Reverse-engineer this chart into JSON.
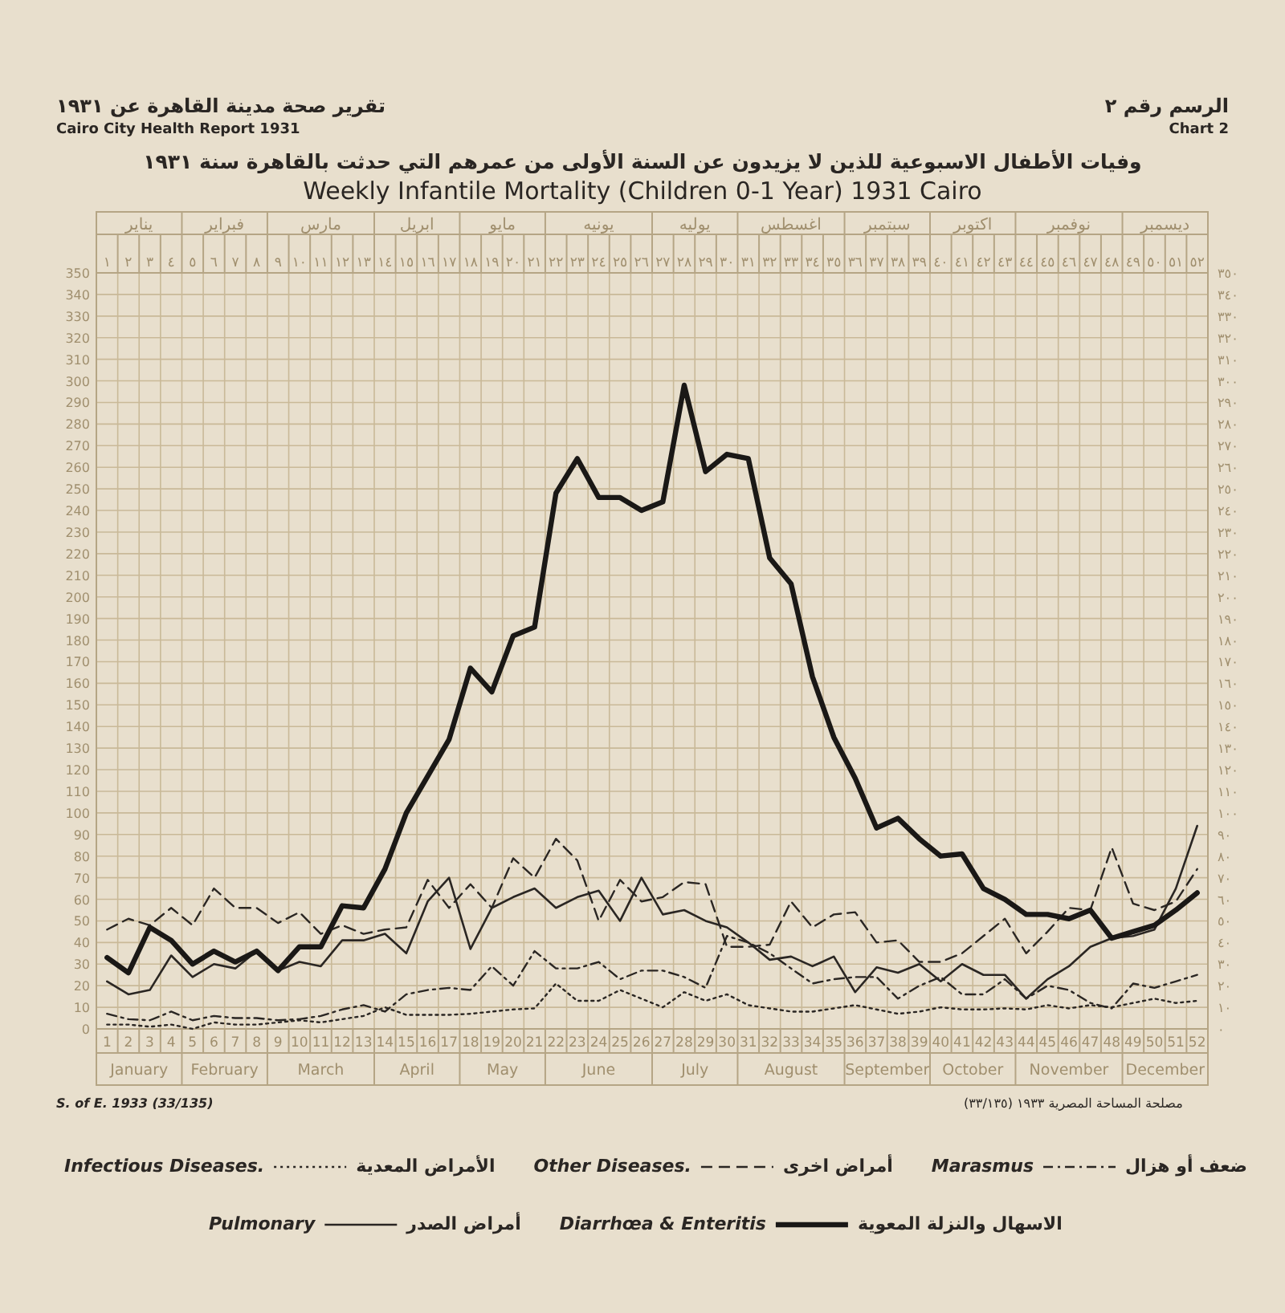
{
  "chart_data": {
    "type": "line",
    "title": "Weekly Infantile Mortality (Children 0-1 Year) 1931 Cairo",
    "subtitle": "وفيات الأطفال الاسبوعية للذين لا يزيدون عن السنة الأولى من عمرهم التي حدثت بالقاهرة سنة ١٩٣١",
    "x": [
      1,
      2,
      3,
      4,
      5,
      6,
      7,
      8,
      9,
      10,
      11,
      12,
      13,
      14,
      15,
      16,
      17,
      18,
      19,
      20,
      21,
      22,
      23,
      24,
      25,
      26,
      27,
      28,
      29,
      30,
      31,
      32,
      33,
      34,
      35,
      36,
      37,
      38,
      39,
      40,
      41,
      42,
      43,
      44,
      45,
      46,
      47,
      48,
      49,
      50,
      51,
      52
    ],
    "xlim": [
      0.5,
      52.5
    ],
    "xticks": [
      1,
      2,
      3,
      4,
      5,
      6,
      7,
      8,
      9,
      10,
      11,
      12,
      13,
      14,
      15,
      16,
      17,
      18,
      19,
      20,
      21,
      22,
      23,
      24,
      25,
      26,
      27,
      28,
      29,
      30,
      31,
      32,
      33,
      34,
      35,
      36,
      37,
      38,
      39,
      40,
      41,
      42,
      43,
      44,
      45,
      46,
      47,
      48,
      49,
      50,
      51,
      52
    ],
    "x2lim": [
      0.5,
      52.5
    ],
    "x2ticks": [
      {
        "value": 1,
        "label": "١"
      },
      {
        "value": 2,
        "label": "٢"
      },
      {
        "value": 3,
        "label": "٣"
      },
      {
        "value": 4,
        "label": "٤"
      },
      {
        "value": 5,
        "label": "٥"
      },
      {
        "value": 6,
        "label": "٦"
      },
      {
        "value": 7,
        "label": "٧"
      },
      {
        "value": 8,
        "label": "٨"
      },
      {
        "value": 9,
        "label": "٩"
      },
      {
        "value": 10,
        "label": "١٠"
      },
      {
        "value": 11,
        "label": "١١"
      },
      {
        "value": 12,
        "label": "١٢"
      },
      {
        "value": 13,
        "label": "١٣"
      },
      {
        "value": 14,
        "label": "١٤"
      },
      {
        "value": 15,
        "label": "١٥"
      },
      {
        "value": 16,
        "label": "١٦"
      },
      {
        "value": 17,
        "label": "١٧"
      },
      {
        "value": 18,
        "label": "١٨"
      },
      {
        "value": 19,
        "label": "١٩"
      },
      {
        "value": 20,
        "label": "٢٠"
      },
      {
        "value": 21,
        "label": "٢١"
      },
      {
        "value": 22,
        "label": "٢٢"
      },
      {
        "value": 23,
        "label": "٢٣"
      },
      {
        "value": 24,
        "label": "٢٤"
      },
      {
        "value": 25,
        "label": "٢٥"
      },
      {
        "value": 26,
        "label": "٢٦"
      },
      {
        "value": 27,
        "label": "٢٧"
      },
      {
        "value": 28,
        "label": "٢٨"
      },
      {
        "value": 29,
        "label": "٢٩"
      },
      {
        "value": 30,
        "label": "٣٠"
      },
      {
        "value": 31,
        "label": "٣١"
      },
      {
        "value": 32,
        "label": "٣٢"
      },
      {
        "value": 33,
        "label": "٣٣"
      },
      {
        "value": 34,
        "label": "٣٤"
      },
      {
        "value": 35,
        "label": "٣٥"
      },
      {
        "value": 36,
        "label": "٣٦"
      },
      {
        "value": 37,
        "label": "٣٧"
      },
      {
        "value": 38,
        "label": "٣٨"
      },
      {
        "value": 39,
        "label": "٣٩"
      },
      {
        "value": 40,
        "label": "٤٠"
      },
      {
        "value": 41,
        "label": "٤١"
      },
      {
        "value": 42,
        "label": "٤٢"
      },
      {
        "value": 43,
        "label": "٤٣"
      },
      {
        "value": 44,
        "label": "٤٤"
      },
      {
        "value": 45,
        "label": "٤٥"
      },
      {
        "value": 46,
        "label": "٤٦"
      },
      {
        "value": 47,
        "label": "٤٧"
      },
      {
        "value": 48,
        "label": "٤٨"
      },
      {
        "value": 49,
        "label": "٤٩"
      },
      {
        "value": 50,
        "label": "٥٠"
      },
      {
        "value": 51,
        "label": "٥١"
      },
      {
        "value": 52,
        "label": "٥٢"
      }
    ],
    "ylim": [
      0,
      350
    ],
    "yticks": [
      0,
      10,
      20,
      30,
      40,
      50,
      60,
      70,
      80,
      90,
      100,
      110,
      120,
      130,
      140,
      150,
      160,
      170,
      180,
      190,
      200,
      210,
      220,
      230,
      240,
      250,
      260,
      270,
      280,
      290,
      300,
      310,
      320,
      330,
      340,
      350
    ],
    "y2lim": [
      0,
      350
    ],
    "y2ticks": [
      {
        "value": 0,
        "label": "٠"
      },
      {
        "value": 10,
        "label": "١٠"
      },
      {
        "value": 20,
        "label": "٢٠"
      },
      {
        "value": 30,
        "label": "٣٠"
      },
      {
        "value": 40,
        "label": "٤٠"
      },
      {
        "value": 50,
        "label": "٥٠"
      },
      {
        "value": 60,
        "label": "٦٠"
      },
      {
        "value": 70,
        "label": "٧٠"
      },
      {
        "value": 80,
        "label": "٨٠"
      },
      {
        "value": 90,
        "label": "٩٠"
      },
      {
        "value": 100,
        "label": "١٠٠"
      },
      {
        "value": 110,
        "label": "١١٠"
      },
      {
        "value": 120,
        "label": "١٢٠"
      },
      {
        "value": 130,
        "label": "١٣٠"
      },
      {
        "value": 140,
        "label": "١٤٠"
      },
      {
        "value": 150,
        "label": "١٥٠"
      },
      {
        "value": 160,
        "label": "١٦٠"
      },
      {
        "value": 170,
        "label": "١٧٠"
      },
      {
        "value": 180,
        "label": "١٨٠"
      },
      {
        "value": 190,
        "label": "١٩٠"
      },
      {
        "value": 200,
        "label": "٢٠٠"
      },
      {
        "value": 210,
        "label": "٢١٠"
      },
      {
        "value": 220,
        "label": "٢٢٠"
      },
      {
        "value": 230,
        "label": "٢٣٠"
      },
      {
        "value": 240,
        "label": "٢٤٠"
      },
      {
        "value": 250,
        "label": "٢٥٠"
      },
      {
        "value": 260,
        "label": "٢٦٠"
      },
      {
        "value": 270,
        "label": "٢٧٠"
      },
      {
        "value": 280,
        "label": "٢٨٠"
      },
      {
        "value": 290,
        "label": "٢٩٠"
      },
      {
        "value": 300,
        "label": "٣٠٠"
      },
      {
        "value": 310,
        "label": "٣١٠"
      },
      {
        "value": 320,
        "label": "٣٢٠"
      },
      {
        "value": 330,
        "label": "٣٣٠"
      },
      {
        "value": 340,
        "label": "٣٤٠"
      },
      {
        "value": 350,
        "label": "٣٥٠"
      }
    ],
    "grid": true,
    "legend": "bottom",
    "series": [
      {
        "name": "Infectious Diseases.",
        "color": "#2a2623",
        "line_style": "dotted",
        "values": [
          2,
          2,
          1,
          2,
          0,
          3,
          2,
          2,
          3,
          4,
          3,
          4.5,
          6,
          10,
          6.5,
          6.5,
          6.5,
          7,
          8,
          9,
          9.5,
          21,
          13,
          13,
          18,
          14,
          10,
          17,
          13,
          16,
          11,
          9.5,
          8,
          8,
          9.5,
          11,
          9,
          7,
          8,
          10,
          9,
          9,
          9.5,
          9,
          11,
          9.5,
          11,
          10,
          12,
          14,
          12,
          13
        ]
      },
      {
        "name": "Other Diseases.",
        "color": "#2a2623",
        "line_style": "dashed",
        "values": [
          46,
          51,
          48,
          56,
          48,
          65,
          56,
          56,
          49,
          54,
          44,
          48,
          44,
          46,
          47,
          69,
          56,
          67,
          56,
          79,
          70,
          88,
          78,
          50,
          69,
          59,
          61,
          68,
          67,
          38,
          38,
          39,
          59,
          47,
          53,
          54,
          40,
          41,
          31,
          31,
          35,
          43,
          51,
          35,
          45,
          56,
          55,
          84,
          58,
          55,
          59,
          74
        ]
      },
      {
        "name": "Marasmus",
        "color": "#2a2623",
        "line_style": "dashdot",
        "values": [
          7,
          4.5,
          4,
          8,
          4,
          6,
          5,
          5,
          4,
          4.5,
          6,
          9,
          11,
          8,
          16,
          18,
          19,
          18,
          29,
          20,
          36,
          28,
          28,
          31,
          23,
          27,
          27,
          24,
          19,
          43,
          40,
          35,
          28,
          21,
          23,
          24,
          24,
          14,
          20,
          24,
          16,
          16,
          23,
          14,
          20,
          18,
          12,
          9.5,
          21,
          19,
          22,
          25
        ]
      },
      {
        "name": "Pulmonary",
        "color": "#2a2623",
        "line_style": "solid",
        "values": [
          22,
          16,
          18,
          34,
          24,
          30,
          28,
          36,
          27,
          31,
          29,
          41,
          41,
          44,
          35,
          59,
          70,
          37,
          56,
          61,
          65,
          56,
          61,
          64,
          50,
          70,
          53,
          55,
          50,
          47,
          40,
          32,
          33.5,
          29,
          33.5,
          17,
          28.5,
          26,
          30,
          22,
          30,
          25,
          25,
          14,
          23,
          29,
          38,
          42,
          43,
          46,
          65,
          94
        ]
      },
      {
        "name": "Diarrhœa & Enteritis",
        "color": "#1a1816",
        "line_style": "solid",
        "values": [
          33,
          26,
          47,
          41,
          30,
          36,
          31,
          36,
          27,
          38,
          38,
          57,
          56,
          74,
          100,
          117,
          134,
          167,
          156,
          182,
          186,
          248,
          264,
          246,
          246,
          240,
          244,
          298,
          258,
          266,
          264,
          218,
          206,
          163,
          135,
          116,
          93,
          97.5,
          88,
          80,
          81,
          65,
          60,
          53,
          53,
          51,
          55,
          42,
          45,
          48,
          55,
          63
        ]
      }
    ],
    "annotations": [
      "تقرير صحة مدينة القاهرة عن ١٩٣١",
      "Cairo City Health Report 1931",
      "الرسم رقم ٢",
      "Chart 2",
      "S. of E. 1933 (33/135)",
      "مصلحة المساحة المصرية ١٩٣٣ (٣٣/١٣٥)",
      "January",
      "February",
      "March",
      "April",
      "May",
      "June",
      "July",
      "August",
      "September",
      "October",
      "November",
      "December",
      "يناير",
      "فبراير",
      "مارس",
      "ابريل",
      "مايو",
      "يونيه",
      "يوليه",
      "اغسطس",
      "سبتمبر",
      "اكتوبر",
      "نوفمبر",
      "ديسمبر",
      "الأمراض المعدية",
      "أمراض اخرى",
      "ضعف أو هزال",
      "أمراض الصدر",
      "الاسهال والنزلة المعوية"
    ]
  }
}
